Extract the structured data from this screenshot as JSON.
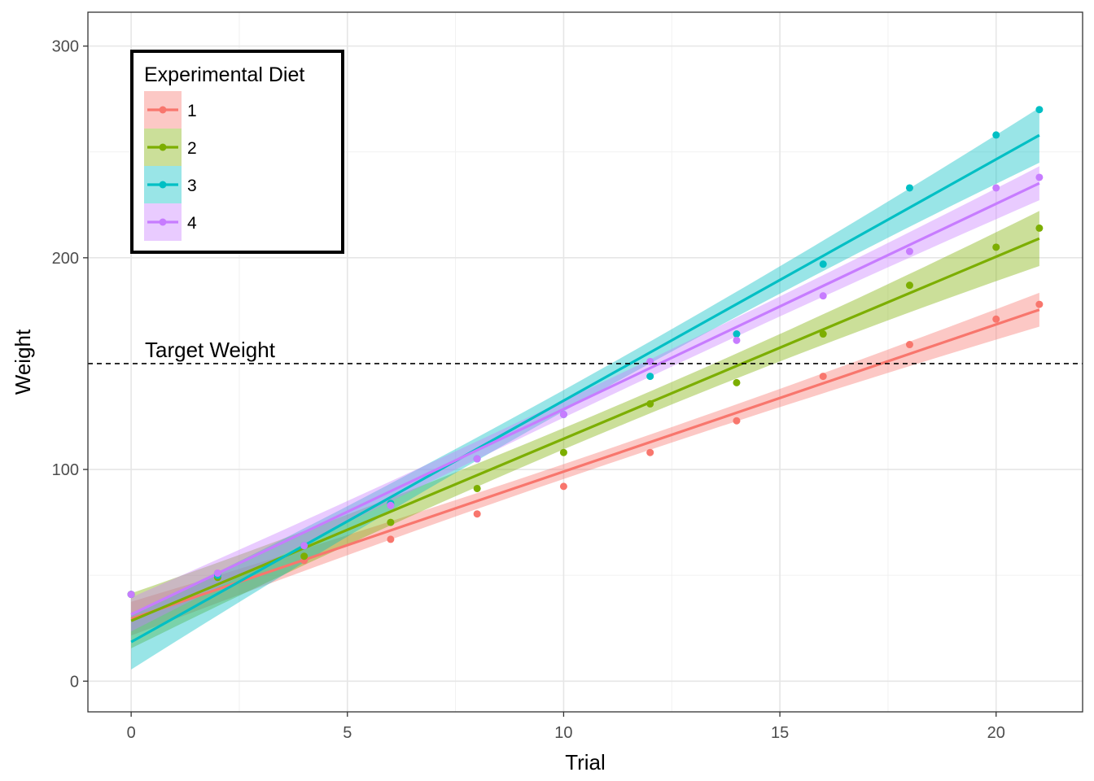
{
  "chart_data": {
    "type": "line",
    "xlabel": "Trial",
    "ylabel": "Weight",
    "xlim": [
      -1,
      22
    ],
    "ylim": [
      -14.5,
      316
    ],
    "x_ticks": [
      0,
      5,
      10,
      15,
      20
    ],
    "y_ticks": [
      0,
      100,
      200,
      300
    ],
    "grid": true,
    "legend": {
      "title": "Experimental Diet",
      "position": "top-left"
    },
    "reference_line": {
      "y": 150,
      "style": "dashed",
      "label": "Target Weight"
    },
    "x": [
      0,
      2,
      4,
      6,
      8,
      10,
      12,
      14,
      16,
      18,
      20,
      21
    ],
    "series": [
      {
        "name": "1",
        "color": "#F8766D",
        "values": [
          41,
          51,
          57,
          67,
          79,
          92,
          108,
          123,
          144,
          159,
          171,
          178
        ],
        "fit": {
          "intercept": 29.5,
          "slope": 6.95,
          "band_halfwidth_min": 3.5,
          "band_halfwidth_max": 8
        }
      },
      {
        "name": "2",
        "color": "#7CAE00",
        "values": [
          41,
          49,
          59,
          75,
          91,
          108,
          131,
          141,
          164,
          187,
          205,
          214
        ],
        "fit": {
          "intercept": 28.5,
          "slope": 8.6,
          "band_halfwidth_min": 5,
          "band_halfwidth_max": 13
        }
      },
      {
        "name": "3",
        "color": "#00BFC4",
        "values": [
          41,
          50,
          64,
          84,
          105,
          126,
          144,
          164,
          197,
          233,
          258,
          270
        ],
        "fit": {
          "intercept": 18.5,
          "slope": 11.4,
          "band_halfwidth_min": 5,
          "band_halfwidth_max": 13
        }
      },
      {
        "name": "4",
        "color": "#C77CFF",
        "values": [
          41,
          51,
          64,
          83,
          105,
          126,
          151,
          161,
          182,
          203,
          233,
          238
        ],
        "fit": {
          "intercept": 31.5,
          "slope": 9.7,
          "band_halfwidth_min": 4,
          "band_halfwidth_max": 8
        }
      }
    ]
  }
}
